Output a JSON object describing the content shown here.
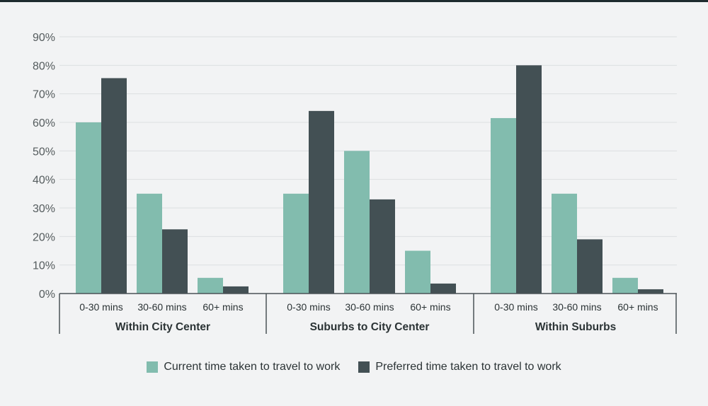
{
  "chart_data": {
    "type": "bar",
    "groups": [
      {
        "label": "Within City Center",
        "categories": [
          "0-30 mins",
          "30-60 mins",
          "60+ mins"
        ]
      },
      {
        "label": "Suburbs to City Center",
        "categories": [
          "0-30 mins",
          "30-60 mins",
          "60+ mins"
        ]
      },
      {
        "label": "Within Suburbs",
        "categories": [
          "0-30 mins",
          "30-60 mins",
          "60+ mins"
        ]
      }
    ],
    "series": [
      {
        "name": "Current time taken to travel to work",
        "color": "#82bcae",
        "values": [
          60,
          35,
          5.5,
          35,
          50,
          15,
          61.5,
          35,
          5.5
        ]
      },
      {
        "name": "Preferred time taken to travel to work",
        "color": "#435054",
        "values": [
          75.5,
          22.5,
          2.5,
          64,
          33,
          3.5,
          80,
          19,
          1.5
        ]
      }
    ],
    "ylim": [
      0,
      90
    ],
    "yticks": [
      "0%",
      "10%",
      "20%",
      "30%",
      "40%",
      "50%",
      "60%",
      "70%",
      "80%",
      "90%"
    ],
    "grid": true,
    "legend_position": "bottom-center"
  }
}
